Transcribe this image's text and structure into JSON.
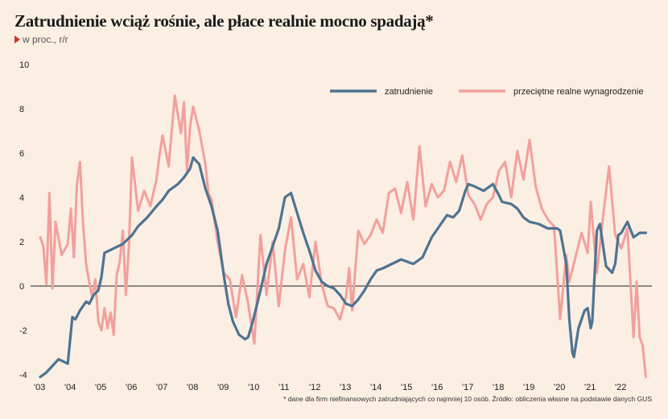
{
  "title": "Zatrudnienie wciąż rośnie, ale płace realnie mocno spadają*",
  "subtitle": "w proc., r/r",
  "footnote": "* dane dla firm niefinansowych zatrudniających co najmniej 10 osób. Źródło: obliczenia własne na podstawie danych GUS",
  "chart_data": {
    "type": "line",
    "ylim": [
      -4,
      10
    ],
    "yticks": [
      "10",
      "8",
      "6",
      "4",
      "2",
      "0",
      "-2",
      "-4"
    ],
    "ytick_values": [
      10,
      8,
      6,
      4,
      2,
      0,
      -2,
      -4
    ],
    "xlim": [
      2003.0,
      2023.0
    ],
    "xticks": [
      "'03",
      "'04",
      "'05",
      "'06",
      "'07",
      "'08",
      "'09",
      "'10",
      "'11",
      "'12",
      "'13",
      "'14",
      "'15",
      "'16",
      "'17",
      "'18",
      "'19",
      "'20",
      "'21",
      "'22"
    ],
    "xtick_values": [
      2003,
      2004,
      2005,
      2006,
      2007,
      2008,
      2009,
      2010,
      2011,
      2012,
      2013,
      2014,
      2015,
      2016,
      2017,
      2018,
      2019,
      2020,
      2021,
      2022
    ],
    "legend_position": "top-right",
    "series": [
      {
        "name": "zatrudnienie",
        "color": "#4e7390",
        "x": [
          2003.0,
          2003.2,
          2003.4,
          2003.6,
          2003.9,
          2004.05,
          2004.15,
          2004.3,
          2004.5,
          2004.6,
          2004.75,
          2004.9,
          2005.0,
          2005.1,
          2005.4,
          2005.7,
          2006.0,
          2006.2,
          2006.5,
          2006.8,
          2007.0,
          2007.2,
          2007.5,
          2007.7,
          2007.9,
          2008.0,
          2008.2,
          2008.4,
          2008.6,
          2008.8,
          2009.0,
          2009.15,
          2009.3,
          2009.5,
          2009.7,
          2009.8,
          2009.95,
          2010.2,
          2010.4,
          2010.6,
          2010.8,
          2011.0,
          2011.2,
          2011.4,
          2011.6,
          2011.8,
          2012.0,
          2012.2,
          2012.4,
          2012.6,
          2012.8,
          2013.0,
          2013.2,
          2013.4,
          2013.6,
          2013.8,
          2014.0,
          2014.2,
          2014.5,
          2014.8,
          2015.0,
          2015.2,
          2015.5,
          2015.8,
          2016.0,
          2016.2,
          2016.3,
          2016.5,
          2016.7,
          2016.9,
          2017.0,
          2017.2,
          2017.5,
          2017.8,
          2018.0,
          2018.1,
          2018.4,
          2018.6,
          2018.8,
          2019.0,
          2019.3,
          2019.6,
          2019.9,
          2020.0,
          2020.2,
          2020.3,
          2020.4,
          2020.45,
          2020.6,
          2020.8,
          2020.9,
          2021.0,
          2021.05,
          2021.2,
          2021.3,
          2021.5,
          2021.7,
          2021.8,
          2021.9,
          2022.0,
          2022.2,
          2022.4,
          2022.6,
          2022.8
        ],
        "values": [
          -4.1,
          -3.9,
          -3.6,
          -3.3,
          -3.5,
          -1.4,
          -1.5,
          -1.1,
          -0.7,
          -0.8,
          -0.4,
          -0.2,
          0.4,
          1.5,
          1.7,
          1.9,
          2.3,
          2.7,
          3.1,
          3.6,
          3.9,
          4.3,
          4.6,
          4.9,
          5.3,
          5.8,
          5.5,
          4.4,
          3.6,
          2.5,
          0.5,
          -0.8,
          -1.6,
          -2.2,
          -2.4,
          -2.3,
          -1.6,
          -0.2,
          1.0,
          1.8,
          2.6,
          4.0,
          4.2,
          3.3,
          2.4,
          1.6,
          0.7,
          0.2,
          0.0,
          -0.1,
          -0.4,
          -0.8,
          -0.9,
          -0.6,
          -0.2,
          0.3,
          0.7,
          0.8,
          1.0,
          1.2,
          1.1,
          1.0,
          1.3,
          2.2,
          2.6,
          3.0,
          3.2,
          3.1,
          3.4,
          4.3,
          4.6,
          4.5,
          4.3,
          4.6,
          4.1,
          3.8,
          3.7,
          3.5,
          3.1,
          2.9,
          2.8,
          2.6,
          2.6,
          2.5,
          1.0,
          -1.5,
          -3.0,
          -3.2,
          -1.9,
          -1.1,
          -1.0,
          -1.9,
          -1.6,
          2.5,
          2.8,
          0.9,
          0.6,
          1.0,
          2.3,
          2.4,
          2.9,
          2.2,
          2.4,
          2.4
        ]
      },
      {
        "name": "przeciętne realne wynagrodzenie",
        "color": "#f2a09c",
        "x": [
          2003.0,
          2003.1,
          2003.2,
          2003.3,
          2003.4,
          2003.5,
          2003.7,
          2003.9,
          2004.0,
          2004.1,
          2004.2,
          2004.3,
          2004.4,
          2004.5,
          2004.6,
          2004.7,
          2004.8,
          2004.9,
          2005.0,
          2005.1,
          2005.2,
          2005.3,
          2005.4,
          2005.5,
          2005.6,
          2005.7,
          2005.8,
          2005.9,
          2006.0,
          2006.2,
          2006.4,
          2006.6,
          2006.8,
          2006.9,
          2007.0,
          2007.2,
          2007.4,
          2007.6,
          2007.7,
          2007.8,
          2007.9,
          2008.0,
          2008.2,
          2008.4,
          2008.5,
          2008.6,
          2008.8,
          2009.0,
          2009.2,
          2009.4,
          2009.6,
          2009.8,
          2010.0,
          2010.2,
          2010.4,
          2010.6,
          2010.8,
          2011.0,
          2011.2,
          2011.4,
          2011.6,
          2011.8,
          2012.0,
          2012.2,
          2012.4,
          2012.6,
          2012.8,
          2013.0,
          2013.1,
          2013.2,
          2013.4,
          2013.6,
          2013.8,
          2014.0,
          2014.2,
          2014.4,
          2014.6,
          2014.8,
          2015.0,
          2015.2,
          2015.4,
          2015.6,
          2015.8,
          2016.0,
          2016.2,
          2016.4,
          2016.6,
          2016.8,
          2017.0,
          2017.2,
          2017.4,
          2017.6,
          2017.8,
          2018.0,
          2018.2,
          2018.4,
          2018.6,
          2018.8,
          2019.0,
          2019.2,
          2019.4,
          2019.6,
          2019.8,
          2020.0,
          2020.2,
          2020.3,
          2020.5,
          2020.7,
          2020.9,
          2021.0,
          2021.2,
          2021.4,
          2021.6,
          2021.8,
          2022.0,
          2022.2,
          2022.4,
          2022.5,
          2022.6,
          2022.7,
          2022.8
        ],
        "values": [
          2.2,
          1.8,
          0.1,
          4.2,
          -0.1,
          2.9,
          1.4,
          1.9,
          3.5,
          1.3,
          4.6,
          5.6,
          2.8,
          1.0,
          0.2,
          -0.5,
          0.3,
          -1.6,
          -2.0,
          -1.0,
          -1.9,
          -1.2,
          -2.2,
          0.5,
          1.1,
          2.5,
          -0.4,
          1.8,
          5.8,
          3.4,
          4.3,
          3.6,
          4.8,
          5.9,
          6.8,
          5.4,
          8.6,
          6.9,
          8.3,
          5.2,
          7.2,
          8.1,
          7.0,
          5.5,
          4.2,
          3.9,
          2.0,
          0.6,
          0.3,
          -1.4,
          0.5,
          -0.8,
          -2.6,
          2.3,
          -0.4,
          2.0,
          -0.9,
          1.6,
          3.1,
          0.3,
          1.0,
          -0.5,
          2.0,
          0.1,
          -0.9,
          -1.0,
          -1.5,
          -0.5,
          0.8,
          -1.1,
          2.5,
          1.9,
          2.3,
          3.0,
          2.4,
          4.2,
          4.4,
          3.3,
          4.7,
          3.0,
          6.3,
          3.6,
          4.6,
          4.0,
          4.3,
          5.6,
          4.7,
          5.9,
          4.1,
          3.7,
          3.0,
          3.7,
          4.0,
          5.2,
          5.6,
          4.0,
          6.1,
          4.8,
          6.6,
          4.5,
          3.5,
          3.0,
          2.7,
          -1.5,
          1.4,
          0.2,
          1.3,
          2.4,
          1.5,
          3.8,
          0.6,
          3.1,
          5.4,
          2.3,
          1.7,
          2.6,
          -2.3,
          0.2,
          -2.3,
          -2.7,
          -4.1
        ]
      }
    ]
  }
}
